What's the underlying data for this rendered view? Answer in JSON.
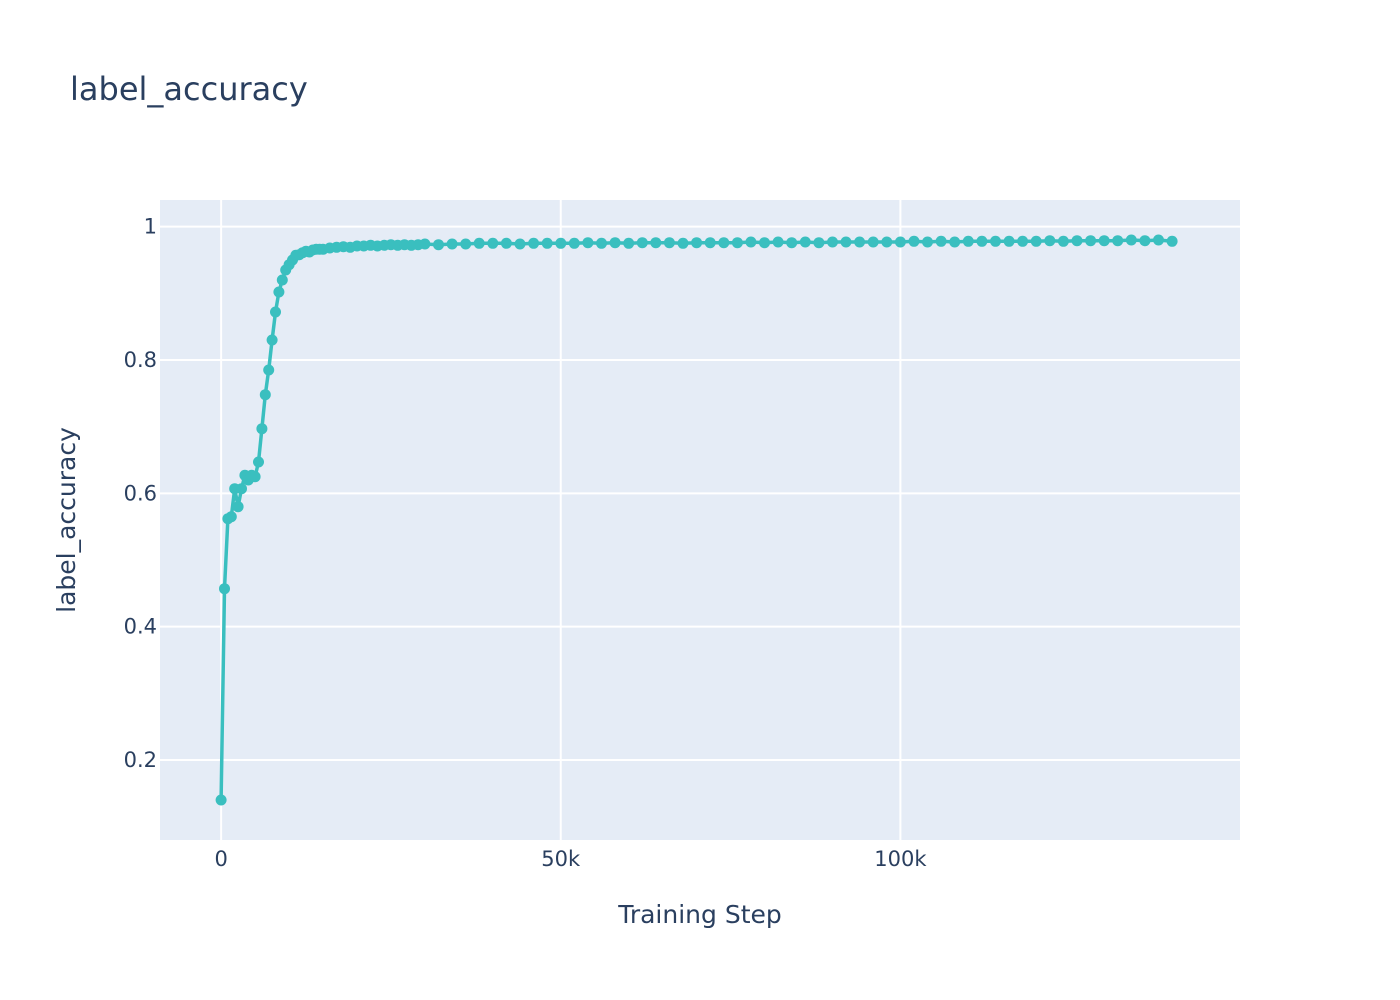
{
  "chart_data": {
    "type": "line",
    "title": "label_accuracy",
    "xlabel": "Training Step",
    "ylabel": "label_accuracy",
    "xlim": [
      -9000,
      150000
    ],
    "ylim": [
      0.08,
      1.04
    ],
    "x_ticks": [
      {
        "value": 0,
        "label": "0"
      },
      {
        "value": 50000,
        "label": "50k"
      },
      {
        "value": 100000,
        "label": "100k"
      }
    ],
    "y_ticks": [
      {
        "value": 0.2,
        "label": "0.2"
      },
      {
        "value": 0.4,
        "label": "0.4"
      },
      {
        "value": 0.6,
        "label": "0.6"
      },
      {
        "value": 0.8,
        "label": "0.8"
      },
      {
        "value": 1,
        "label": "1"
      }
    ],
    "grid": true,
    "colors": {
      "line": "#3abfbf",
      "plot_background": "#e5ecf6",
      "grid": "#ffffff",
      "text": "#2a3f5f"
    },
    "series": [
      {
        "x": [
          0,
          500,
          1000,
          1500,
          2000,
          2500,
          3000,
          3500,
          4000,
          4500,
          5000,
          5500,
          6000,
          6500,
          7000,
          7500,
          8000,
          8500,
          9000,
          9500,
          10000,
          10500,
          11000,
          11500,
          12000,
          12500,
          13000,
          13500,
          14000,
          14500,
          15000,
          16000,
          17000,
          18000,
          19000,
          20000,
          21000,
          22000,
          23000,
          24000,
          25000,
          26000,
          27000,
          28000,
          29000,
          30000,
          32000,
          34000,
          36000,
          38000,
          40000,
          42000,
          44000,
          46000,
          48000,
          50000,
          52000,
          54000,
          56000,
          58000,
          60000,
          62000,
          64000,
          66000,
          68000,
          70000,
          72000,
          74000,
          76000,
          78000,
          80000,
          82000,
          84000,
          86000,
          88000,
          90000,
          92000,
          94000,
          96000,
          98000,
          100000,
          102000,
          104000,
          106000,
          108000,
          110000,
          112000,
          114000,
          116000,
          118000,
          120000,
          122000,
          124000,
          126000,
          128000,
          130000,
          132000,
          134000,
          136000,
          138000,
          140000
        ],
        "y": [
          0.14,
          0.457,
          0.562,
          0.565,
          0.607,
          0.58,
          0.607,
          0.627,
          0.62,
          0.627,
          0.625,
          0.647,
          0.697,
          0.748,
          0.785,
          0.83,
          0.872,
          0.902,
          0.92,
          0.935,
          0.943,
          0.95,
          0.957,
          0.958,
          0.961,
          0.963,
          0.962,
          0.965,
          0.966,
          0.966,
          0.966,
          0.968,
          0.969,
          0.97,
          0.969,
          0.971,
          0.971,
          0.972,
          0.971,
          0.972,
          0.973,
          0.972,
          0.973,
          0.972,
          0.973,
          0.974,
          0.973,
          0.974,
          0.974,
          0.975,
          0.975,
          0.975,
          0.974,
          0.975,
          0.975,
          0.975,
          0.975,
          0.976,
          0.975,
          0.976,
          0.975,
          0.976,
          0.976,
          0.976,
          0.975,
          0.976,
          0.976,
          0.976,
          0.976,
          0.977,
          0.976,
          0.977,
          0.976,
          0.977,
          0.976,
          0.977,
          0.977,
          0.977,
          0.977,
          0.977,
          0.977,
          0.978,
          0.977,
          0.978,
          0.977,
          0.978,
          0.978,
          0.978,
          0.978,
          0.978,
          0.978,
          0.979,
          0.978,
          0.979,
          0.979,
          0.979,
          0.979,
          0.98,
          0.979,
          0.98,
          0.978
        ]
      }
    ]
  }
}
